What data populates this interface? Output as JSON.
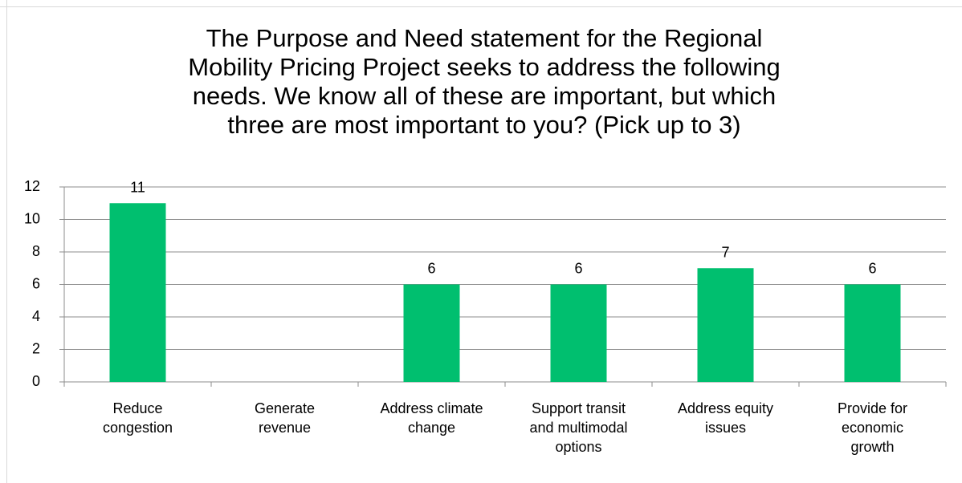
{
  "chart_data": {
    "type": "bar",
    "title": "The Purpose and Need statement for the Regional\nMobility Pricing Project seeks to address the following\nneeds. We know all of these are important, but which\nthree are most important to you? (Pick up to 3)",
    "categories": [
      "Reduce\ncongestion",
      "Generate\nrevenue",
      "Address climate\nchange",
      "Support transit\nand multimodal\noptions",
      "Address equity\nissues",
      "Provide for\neconomic\ngrowth"
    ],
    "values": [
      11,
      0,
      6,
      6,
      7,
      6
    ],
    "value_labels": [
      "11",
      null,
      "6",
      "6",
      "7",
      "6"
    ],
    "color": "#00bf6f",
    "ylim": [
      0,
      12
    ],
    "yticks": [
      0,
      2,
      4,
      6,
      8,
      10,
      12
    ],
    "grid": true
  }
}
